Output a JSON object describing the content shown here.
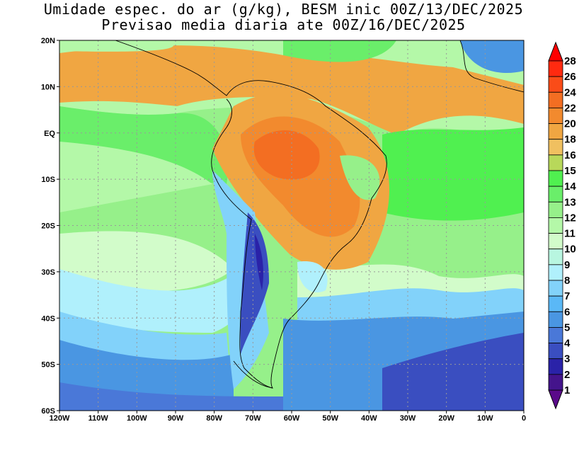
{
  "title_line1": "Umidade espec. do ar (g/kg), BESM inic 00Z/13/DEC/2025",
  "title_line2": "Previsao media diaria ate 00Z/16/DEC/2025",
  "map": {
    "lon_range": [
      -120,
      0
    ],
    "lat_range": [
      -60,
      20
    ],
    "lon_ticks": [
      {
        "v": -120,
        "label": "120W"
      },
      {
        "v": -110,
        "label": "110W"
      },
      {
        "v": -100,
        "label": "100W"
      },
      {
        "v": -90,
        "label": "90W"
      },
      {
        "v": -80,
        "label": "80W"
      },
      {
        "v": -70,
        "label": "70W"
      },
      {
        "v": -60,
        "label": "60W"
      },
      {
        "v": -50,
        "label": "50W"
      },
      {
        "v": -40,
        "label": "40W"
      },
      {
        "v": -30,
        "label": "30W"
      },
      {
        "v": -20,
        "label": "20W"
      },
      {
        "v": -10,
        "label": "10W"
      },
      {
        "v": 0,
        "label": "0"
      }
    ],
    "lat_ticks": [
      {
        "v": 20,
        "label": "20N"
      },
      {
        "v": 10,
        "label": "10N"
      },
      {
        "v": 0,
        "label": "EQ"
      },
      {
        "v": -10,
        "label": "10S"
      },
      {
        "v": -20,
        "label": "20S"
      },
      {
        "v": -30,
        "label": "30S"
      },
      {
        "v": -40,
        "label": "40S"
      },
      {
        "v": -50,
        "label": "50S"
      },
      {
        "v": -60,
        "label": "60S"
      }
    ]
  },
  "colorbar": {
    "labels": [
      "28",
      "26",
      "24",
      "22",
      "20",
      "18",
      "16",
      "15",
      "14",
      "13",
      "12",
      "11",
      "10",
      "9",
      "8",
      "7",
      "6",
      "5",
      "4",
      "3",
      "2",
      "1"
    ],
    "top_arrow": "#ff0000",
    "bottom_arrow": "#5a0a8a",
    "colors": [
      "#ff2a10",
      "#fa4c18",
      "#f36e22",
      "#f28a2e",
      "#f0a642",
      "#f0c060",
      "#b8d85a",
      "#50f050",
      "#6aee6a",
      "#96f08a",
      "#b4f8a8",
      "#d2fcca",
      "#b8f6e0",
      "#b0f0fc",
      "#82d2fa",
      "#5ab8f6",
      "#4a96e2",
      "#4a78d8",
      "#3a4ec0",
      "#2a22a8",
      "#44148c"
    ]
  }
}
